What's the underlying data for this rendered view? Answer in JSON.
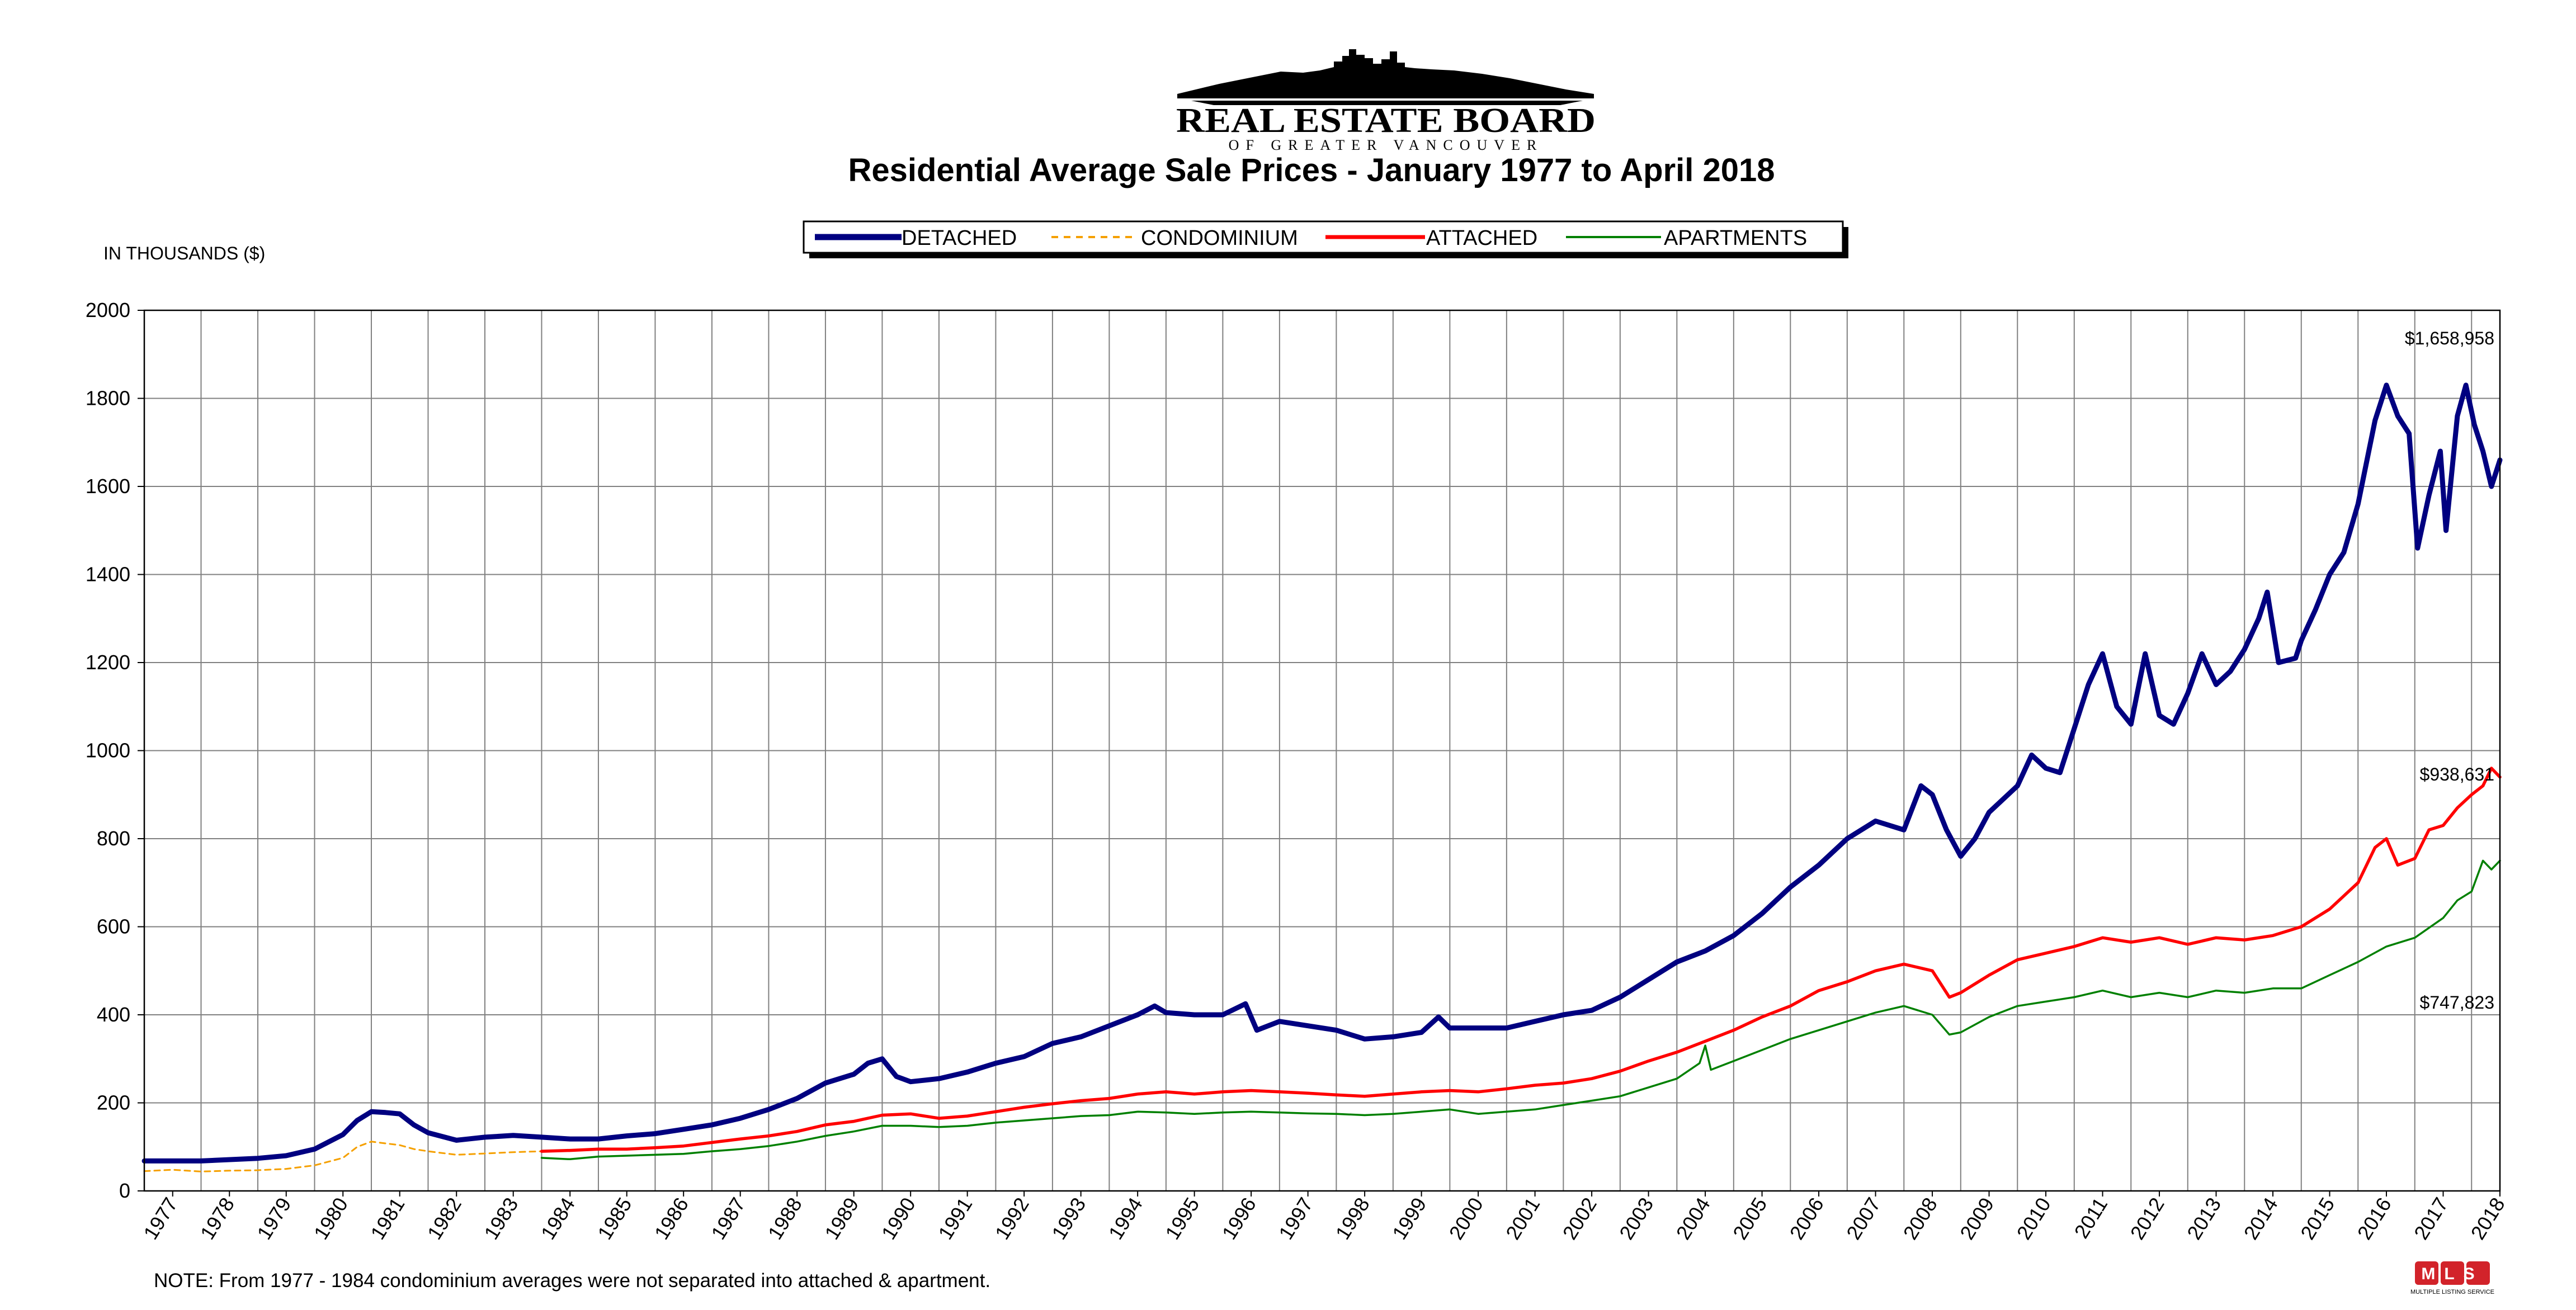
{
  "brand": {
    "name": "REAL ESTATE BOARD",
    "sub": "OF GREATER VANCOUVER",
    "badge": "MLS",
    "badge_caption": "MULTIPLE LISTING SERVICE"
  },
  "colors": {
    "detached": "#000080",
    "condominium": "#F5A000",
    "attached": "#FF0000",
    "apartments": "#008000",
    "grid": "#808080"
  },
  "chart_data": {
    "type": "line",
    "title": "Residential Average Sale Prices  -  January 1977 to April 2018",
    "ylabel": "IN THOUSANDS ($)",
    "xlabel": "",
    "ylim": [
      0,
      2000
    ],
    "yticks": [
      "0",
      "200",
      "400",
      "600",
      "800",
      "1000",
      "1200",
      "1400",
      "1600",
      "1800",
      "2000"
    ],
    "x_categories": [
      "1977",
      "1978",
      "1979",
      "1980",
      "1981",
      "1982",
      "1983",
      "1984",
      "1985",
      "1986",
      "1987",
      "1988",
      "1989",
      "1990",
      "1991",
      "1992",
      "1993",
      "1994",
      "1995",
      "1996",
      "1997",
      "1998",
      "1999",
      "2000",
      "2001",
      "2002",
      "2003",
      "2004",
      "2005",
      "2006",
      "2007",
      "2008",
      "2009",
      "2010",
      "2011",
      "2012",
      "2013",
      "2014",
      "2015",
      "2016",
      "2017",
      "2018"
    ],
    "xlim": [
      1977.0,
      2018.5
    ],
    "grid": true,
    "legend_position": "top-center",
    "note": "NOTE:  From 1977 - 1984 condominium averages were not separated into attached & apartment.",
    "annotations": [
      {
        "label": "$1,658,958",
        "series": "DETACHED"
      },
      {
        "label": "$938,631",
        "series": "ATTACHED"
      },
      {
        "label": "$747,823",
        "series": "APARTMENTS"
      }
    ],
    "series": [
      {
        "name": "DETACHED",
        "style": "solid-thick",
        "points": [
          [
            1977.0,
            68
          ],
          [
            1978.0,
            68
          ],
          [
            1979.0,
            74
          ],
          [
            1979.5,
            80
          ],
          [
            1980.0,
            95
          ],
          [
            1980.5,
            128
          ],
          [
            1980.75,
            160
          ],
          [
            1981.0,
            180
          ],
          [
            1981.25,
            178
          ],
          [
            1981.5,
            175
          ],
          [
            1981.75,
            150
          ],
          [
            1982.0,
            132
          ],
          [
            1982.5,
            115
          ],
          [
            1983.0,
            122
          ],
          [
            1983.5,
            126
          ],
          [
            1984.0,
            122
          ],
          [
            1984.5,
            118
          ],
          [
            1985.0,
            118
          ],
          [
            1985.5,
            125
          ],
          [
            1986.0,
            130
          ],
          [
            1986.5,
            140
          ],
          [
            1987.0,
            150
          ],
          [
            1987.5,
            165
          ],
          [
            1988.0,
            185
          ],
          [
            1988.5,
            210
          ],
          [
            1989.0,
            245
          ],
          [
            1989.5,
            265
          ],
          [
            1989.75,
            290
          ],
          [
            1990.0,
            300
          ],
          [
            1990.25,
            260
          ],
          [
            1990.5,
            248
          ],
          [
            1991.0,
            255
          ],
          [
            1991.5,
            270
          ],
          [
            1992.0,
            290
          ],
          [
            1992.5,
            305
          ],
          [
            1993.0,
            335
          ],
          [
            1993.5,
            350
          ],
          [
            1994.0,
            375
          ],
          [
            1994.5,
            400
          ],
          [
            1994.8,
            420
          ],
          [
            1995.0,
            405
          ],
          [
            1995.5,
            400
          ],
          [
            1996.0,
            400
          ],
          [
            1996.4,
            425
          ],
          [
            1996.6,
            365
          ],
          [
            1997.0,
            385
          ],
          [
            1997.5,
            375
          ],
          [
            1998.0,
            365
          ],
          [
            1998.5,
            345
          ],
          [
            1999.0,
            350
          ],
          [
            1999.5,
            360
          ],
          [
            1999.8,
            395
          ],
          [
            2000.0,
            370
          ],
          [
            2000.5,
            370
          ],
          [
            2001.0,
            370
          ],
          [
            2001.5,
            385
          ],
          [
            2002.0,
            400
          ],
          [
            2002.5,
            410
          ],
          [
            2003.0,
            440
          ],
          [
            2003.5,
            480
          ],
          [
            2004.0,
            520
          ],
          [
            2004.5,
            545
          ],
          [
            2005.0,
            580
          ],
          [
            2005.5,
            630
          ],
          [
            2006.0,
            690
          ],
          [
            2006.5,
            740
          ],
          [
            2007.0,
            800
          ],
          [
            2007.5,
            840
          ],
          [
            2008.0,
            820
          ],
          [
            2008.3,
            920
          ],
          [
            2008.5,
            900
          ],
          [
            2008.75,
            820
          ],
          [
            2009.0,
            760
          ],
          [
            2009.25,
            800
          ],
          [
            2009.5,
            860
          ],
          [
            2010.0,
            920
          ],
          [
            2010.25,
            990
          ],
          [
            2010.5,
            960
          ],
          [
            2010.75,
            950
          ],
          [
            2011.0,
            1050
          ],
          [
            2011.25,
            1150
          ],
          [
            2011.5,
            1220
          ],
          [
            2011.75,
            1100
          ],
          [
            2012.0,
            1060
          ],
          [
            2012.25,
            1220
          ],
          [
            2012.5,
            1080
          ],
          [
            2012.75,
            1060
          ],
          [
            2013.0,
            1130
          ],
          [
            2013.25,
            1220
          ],
          [
            2013.5,
            1150
          ],
          [
            2013.75,
            1180
          ],
          [
            2014.0,
            1230
          ],
          [
            2014.25,
            1300
          ],
          [
            2014.4,
            1360
          ],
          [
            2014.6,
            1200
          ],
          [
            2014.9,
            1210
          ],
          [
            2015.0,
            1250
          ],
          [
            2015.25,
            1320
          ],
          [
            2015.5,
            1400
          ],
          [
            2015.75,
            1450
          ],
          [
            2016.0,
            1560
          ],
          [
            2016.3,
            1750
          ],
          [
            2016.5,
            1830
          ],
          [
            2016.7,
            1760
          ],
          [
            2016.9,
            1720
          ],
          [
            2017.05,
            1460
          ],
          [
            2017.25,
            1580
          ],
          [
            2017.45,
            1680
          ],
          [
            2017.55,
            1500
          ],
          [
            2017.75,
            1760
          ],
          [
            2017.9,
            1830
          ],
          [
            2018.05,
            1740
          ],
          [
            2018.2,
            1680
          ],
          [
            2018.35,
            1600
          ],
          [
            2018.5,
            1660
          ]
        ]
      },
      {
        "name": "CONDOMINIUM",
        "style": "dashed",
        "points": [
          [
            1977.0,
            45
          ],
          [
            1977.5,
            48
          ],
          [
            1978.0,
            44
          ],
          [
            1978.5,
            46
          ],
          [
            1979.0,
            47
          ],
          [
            1979.5,
            50
          ],
          [
            1980.0,
            58
          ],
          [
            1980.5,
            75
          ],
          [
            1980.75,
            100
          ],
          [
            1981.0,
            112
          ],
          [
            1981.25,
            108
          ],
          [
            1981.5,
            104
          ],
          [
            1981.75,
            95
          ],
          [
            1982.0,
            90
          ],
          [
            1982.5,
            82
          ],
          [
            1983.0,
            85
          ],
          [
            1983.5,
            88
          ],
          [
            1984.0,
            90
          ]
        ]
      },
      {
        "name": "ATTACHED",
        "style": "solid",
        "points": [
          [
            1984.0,
            90
          ],
          [
            1984.5,
            92
          ],
          [
            1985.0,
            95
          ],
          [
            1985.5,
            95
          ],
          [
            1986.0,
            98
          ],
          [
            1986.5,
            102
          ],
          [
            1987.0,
            110
          ],
          [
            1987.5,
            118
          ],
          [
            1988.0,
            125
          ],
          [
            1988.5,
            135
          ],
          [
            1989.0,
            150
          ],
          [
            1989.5,
            158
          ],
          [
            1990.0,
            172
          ],
          [
            1990.5,
            175
          ],
          [
            1991.0,
            165
          ],
          [
            1991.5,
            170
          ],
          [
            1992.0,
            180
          ],
          [
            1992.5,
            190
          ],
          [
            1993.0,
            198
          ],
          [
            1993.5,
            205
          ],
          [
            1994.0,
            210
          ],
          [
            1994.5,
            220
          ],
          [
            1995.0,
            225
          ],
          [
            1995.5,
            220
          ],
          [
            1996.0,
            225
          ],
          [
            1996.5,
            228
          ],
          [
            1997.0,
            225
          ],
          [
            1997.5,
            222
          ],
          [
            1998.0,
            218
          ],
          [
            1998.5,
            215
          ],
          [
            1999.0,
            220
          ],
          [
            1999.5,
            225
          ],
          [
            2000.0,
            228
          ],
          [
            2000.5,
            225
          ],
          [
            2001.0,
            232
          ],
          [
            2001.5,
            240
          ],
          [
            2002.0,
            245
          ],
          [
            2002.5,
            255
          ],
          [
            2003.0,
            272
          ],
          [
            2003.5,
            295
          ],
          [
            2004.0,
            315
          ],
          [
            2004.5,
            340
          ],
          [
            2005.0,
            365
          ],
          [
            2005.5,
            395
          ],
          [
            2006.0,
            420
          ],
          [
            2006.5,
            455
          ],
          [
            2007.0,
            475
          ],
          [
            2007.5,
            500
          ],
          [
            2008.0,
            515
          ],
          [
            2008.5,
            500
          ],
          [
            2008.8,
            440
          ],
          [
            2009.0,
            450
          ],
          [
            2009.5,
            490
          ],
          [
            2010.0,
            525
          ],
          [
            2010.5,
            540
          ],
          [
            2011.0,
            555
          ],
          [
            2011.5,
            575
          ],
          [
            2012.0,
            565
          ],
          [
            2012.5,
            575
          ],
          [
            2013.0,
            560
          ],
          [
            2013.5,
            575
          ],
          [
            2014.0,
            570
          ],
          [
            2014.5,
            580
          ],
          [
            2015.0,
            600
          ],
          [
            2015.5,
            640
          ],
          [
            2016.0,
            700
          ],
          [
            2016.3,
            780
          ],
          [
            2016.5,
            800
          ],
          [
            2016.7,
            740
          ],
          [
            2017.0,
            755
          ],
          [
            2017.25,
            820
          ],
          [
            2017.5,
            830
          ],
          [
            2017.75,
            870
          ],
          [
            2018.0,
            900
          ],
          [
            2018.2,
            920
          ],
          [
            2018.35,
            960
          ],
          [
            2018.5,
            940
          ]
        ]
      },
      {
        "name": "APARTMENTS",
        "style": "solid-thin",
        "points": [
          [
            1984.0,
            75
          ],
          [
            1984.5,
            72
          ],
          [
            1985.0,
            78
          ],
          [
            1985.5,
            80
          ],
          [
            1986.0,
            82
          ],
          [
            1986.5,
            84
          ],
          [
            1987.0,
            90
          ],
          [
            1987.5,
            95
          ],
          [
            1988.0,
            102
          ],
          [
            1988.5,
            112
          ],
          [
            1989.0,
            125
          ],
          [
            1989.5,
            135
          ],
          [
            1990.0,
            148
          ],
          [
            1990.5,
            148
          ],
          [
            1991.0,
            145
          ],
          [
            1991.5,
            148
          ],
          [
            1992.0,
            155
          ],
          [
            1992.5,
            160
          ],
          [
            1993.0,
            165
          ],
          [
            1993.5,
            170
          ],
          [
            1994.0,
            172
          ],
          [
            1994.5,
            180
          ],
          [
            1995.0,
            178
          ],
          [
            1995.5,
            175
          ],
          [
            1996.0,
            178
          ],
          [
            1996.5,
            180
          ],
          [
            1997.0,
            178
          ],
          [
            1997.5,
            176
          ],
          [
            1998.0,
            175
          ],
          [
            1998.5,
            172
          ],
          [
            1999.0,
            175
          ],
          [
            1999.5,
            180
          ],
          [
            2000.0,
            185
          ],
          [
            2000.5,
            175
          ],
          [
            2001.0,
            180
          ],
          [
            2001.5,
            185
          ],
          [
            2002.0,
            195
          ],
          [
            2002.5,
            205
          ],
          [
            2003.0,
            215
          ],
          [
            2003.5,
            235
          ],
          [
            2004.0,
            255
          ],
          [
            2004.4,
            290
          ],
          [
            2004.5,
            330
          ],
          [
            2004.6,
            275
          ],
          [
            2005.0,
            295
          ],
          [
            2005.5,
            320
          ],
          [
            2006.0,
            345
          ],
          [
            2006.5,
            365
          ],
          [
            2007.0,
            385
          ],
          [
            2007.5,
            405
          ],
          [
            2008.0,
            420
          ],
          [
            2008.5,
            400
          ],
          [
            2008.8,
            355
          ],
          [
            2009.0,
            360
          ],
          [
            2009.5,
            395
          ],
          [
            2010.0,
            420
          ],
          [
            2010.5,
            430
          ],
          [
            2011.0,
            440
          ],
          [
            2011.5,
            455
          ],
          [
            2012.0,
            440
          ],
          [
            2012.5,
            450
          ],
          [
            2013.0,
            440
          ],
          [
            2013.5,
            455
          ],
          [
            2014.0,
            450
          ],
          [
            2014.5,
            460
          ],
          [
            2015.0,
            460
          ],
          [
            2015.5,
            490
          ],
          [
            2016.0,
            520
          ],
          [
            2016.5,
            555
          ],
          [
            2017.0,
            575
          ],
          [
            2017.5,
            620
          ],
          [
            2017.75,
            660
          ],
          [
            2018.0,
            680
          ],
          [
            2018.2,
            750
          ],
          [
            2018.35,
            730
          ],
          [
            2018.5,
            750
          ]
        ]
      }
    ]
  }
}
